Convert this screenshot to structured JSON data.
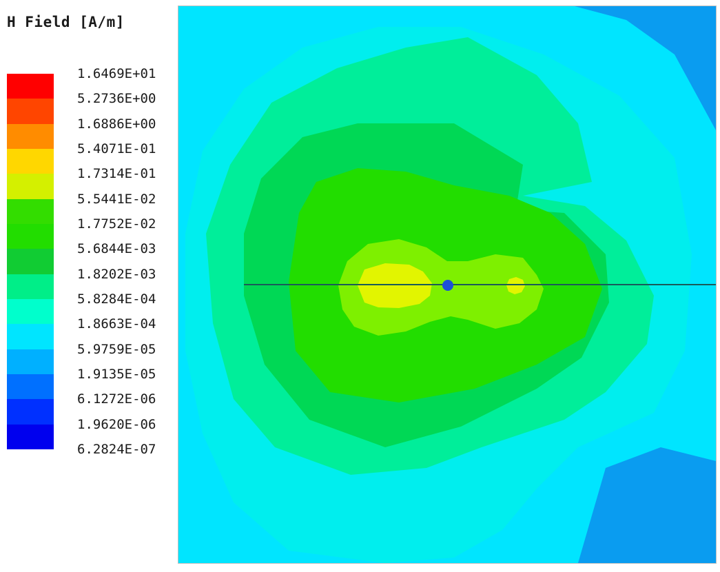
{
  "chart_data": {
    "type": "heatmap",
    "title": "H Field [A/m]",
    "colorbar": {
      "levels": [
        "1.6469E+01",
        "5.2736E+00",
        "1.6886E+00",
        "5.4071E-01",
        "1.7314E-01",
        "5.5441E-02",
        "1.7752E-02",
        "5.6844E-03",
        "1.8202E-03",
        "5.8284E-04",
        "1.8663E-04",
        "5.9759E-05",
        "1.9135E-05",
        "6.1272E-06",
        "1.9620E-06",
        "6.2824E-07"
      ],
      "colors": [
        "#ff0000",
        "#ff4500",
        "#ff8c00",
        "#ffd700",
        "#d4f000",
        "#33dd00",
        "#22dd00",
        "#11cc33",
        "#00ee88",
        "#00ffcc",
        "#00e5ff",
        "#00b0ff",
        "#0070ff",
        "#0030ff",
        "#0000ee"
      ]
    },
    "contour_colors": {
      "background": "#00e5ff",
      "outer_corner": "#0a9cf0",
      "cyan_light": "#00eeee",
      "mint": "#00ee9a",
      "green_mid": "#00d855",
      "green_core": "#22dd00",
      "yellow_green": "#7ef000",
      "yellow": "#e2f500",
      "source_marker": "#1e50d8",
      "axis_line": "#1a5a5a"
    }
  }
}
